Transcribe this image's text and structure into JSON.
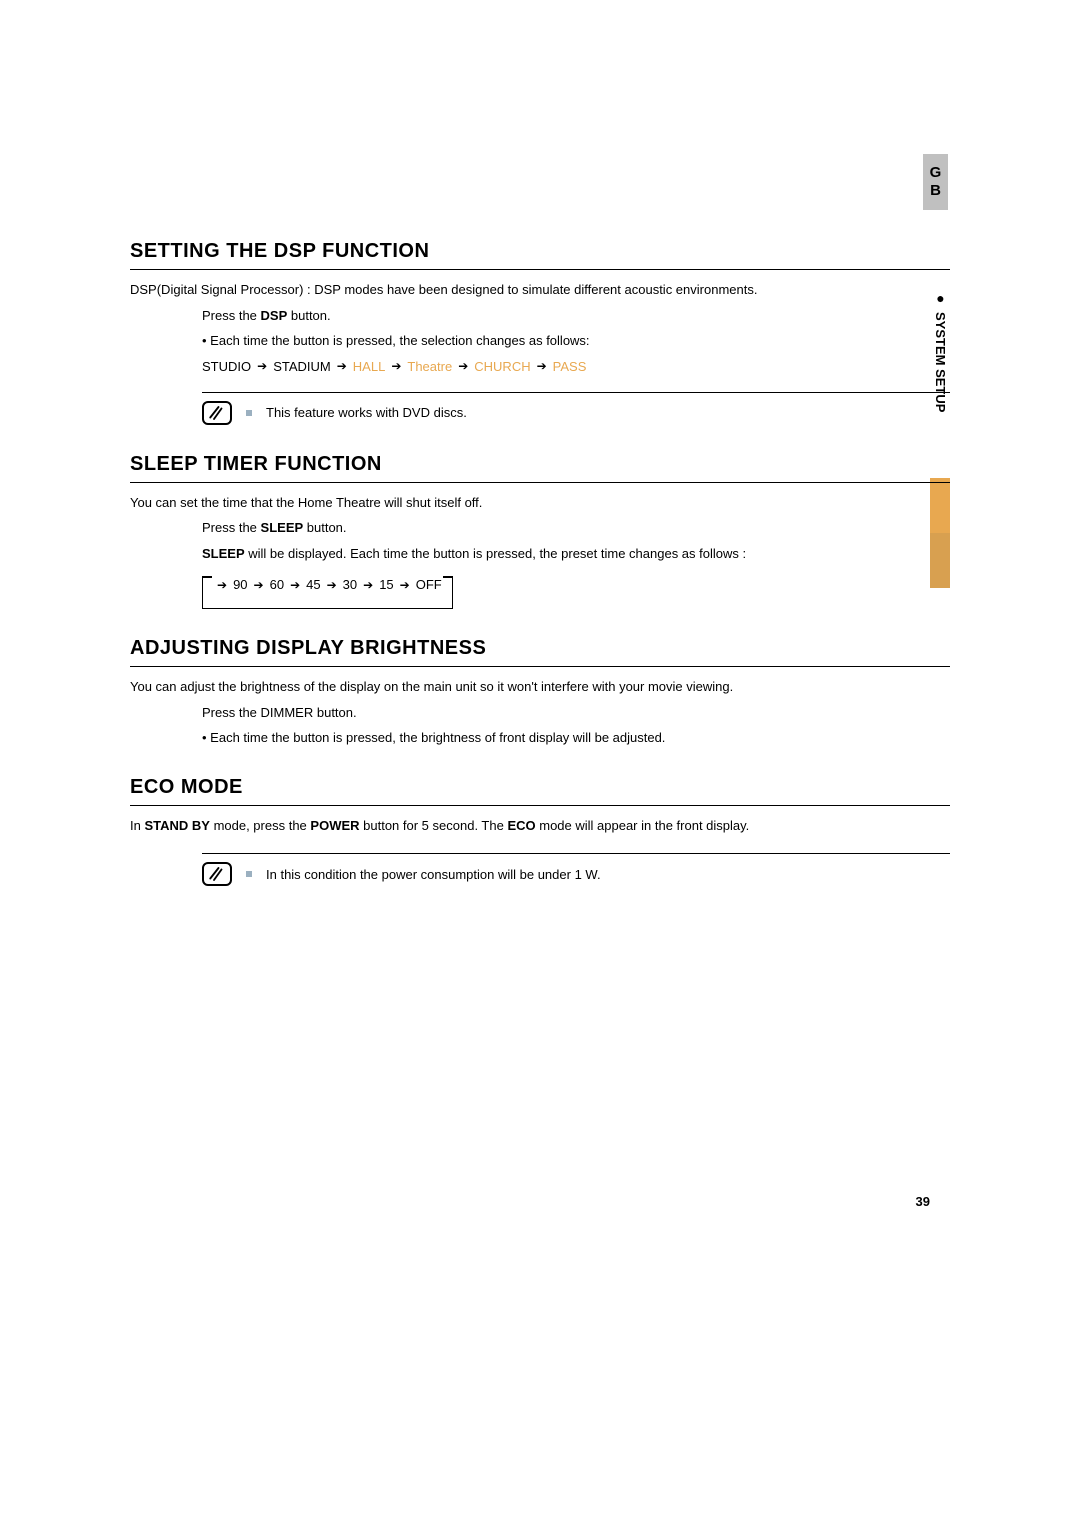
{
  "sideTab": {
    "lang": "GB",
    "section": "SYSTEM SETUP"
  },
  "pageNumber": "39",
  "sections": {
    "dsp": {
      "title": "SETTING THE DSP FUNCTION",
      "intro": "DSP(Digital Signal Processor) : DSP modes have been designed to simulate different acoustic environments.",
      "press_prefix": "Press the ",
      "press_bold": "DSP",
      "press_suffix": " button.",
      "bullet": "• Each time the button is pressed, the selection changes as follows:",
      "chain": [
        "STUDIO",
        "STADIUM",
        "HALL",
        "Theatre",
        "CHURCH",
        "PASS"
      ],
      "orange_items": [
        "HALL",
        "Theatre",
        "CHURCH",
        "PASS"
      ],
      "note": "This feature works with DVD discs."
    },
    "sleep": {
      "title": "SLEEP TIMER FUNCTION",
      "intro": "You can set the time that the Home Theatre will shut itself off.",
      "press_prefix": "Press the ",
      "press_bold": "SLEEP",
      "press_suffix": " button.",
      "desc_bold": "SLEEP",
      "desc_rest": " will be displayed. Each time the button is pressed, the preset time changes as follows :",
      "chain": [
        "90",
        "60",
        "45",
        "30",
        "15",
        "OFF"
      ]
    },
    "brightness": {
      "title": "ADJUSTING DISPLAY BRIGHTNESS",
      "intro": "You can adjust the brightness of the display on the main unit so it won't interfere with your movie viewing.",
      "press": "Press the DIMMER button.",
      "bullet": "• Each time the button is pressed, the brightness of front display will be adjusted."
    },
    "eco": {
      "title": "ECO MODE",
      "line_p1": "In ",
      "line_b1": "STAND BY",
      "line_p2": " mode, press the ",
      "line_b2": "POWER",
      "line_p3": " button for 5 second. The ",
      "line_b3": "ECO",
      "line_p4": " mode will appear in the front display.",
      "note": "In this condition the power consumption will be under 1 W."
    }
  },
  "colors": {
    "orange": "#e8a850",
    "tab_gray": "#c0c0c0",
    "bullet_blue": "#9bb0c0"
  }
}
